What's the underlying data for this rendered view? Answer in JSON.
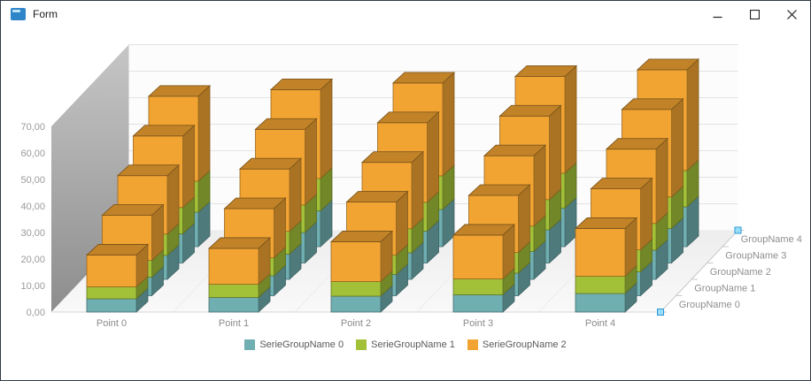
{
  "window": {
    "title": "Form",
    "icon": "form-app-icon",
    "controls": {
      "minimize": "minimize",
      "maximize": "maximize",
      "close": "close"
    }
  },
  "chart_data": {
    "type": "bar",
    "subtype": "3d-stacked-manhattan",
    "title": "",
    "points": [
      "Point 0",
      "Point 1",
      "Point 2",
      "Point 3",
      "Point 4"
    ],
    "groups": [
      "GroupName 0",
      "GroupName 1",
      "GroupName 2",
      "GroupName 3",
      "GroupName 4"
    ],
    "yticks": [
      "0,00",
      "10,00",
      "20,00",
      "30,00",
      "40,00",
      "50,00",
      "60,00",
      "70,00"
    ],
    "ylim": [
      0,
      70
    ],
    "grid": true,
    "legend_position": "bottom",
    "selection_handle_color": "#9ADCF8",
    "series": [
      {
        "name": "SerieGroupName 0",
        "color": "#6FAEB1",
        "values": [
          [
            5,
            5.5,
            6,
            6.5,
            7
          ],
          [
            7,
            7.5,
            8,
            8.5,
            9
          ],
          [
            9,
            9.5,
            10,
            10.5,
            11
          ],
          [
            11,
            11.5,
            12,
            12.5,
            13
          ],
          [
            13,
            13.5,
            14,
            14.5,
            15
          ]
        ]
      },
      {
        "name": "SerieGroupName 1",
        "color": "#A2C139",
        "values": [
          [
            4.5,
            5,
            5.5,
            6,
            6.5
          ],
          [
            6.3,
            6.8,
            7.3,
            7.8,
            8.3
          ],
          [
            8.1,
            8.6,
            9.1,
            9.6,
            10.1
          ],
          [
            9.9,
            10.4,
            10.9,
            11.4,
            11.9
          ],
          [
            11.7,
            12.2,
            12.7,
            13.2,
            13.7
          ]
        ]
      },
      {
        "name": "SerieGroupName 2",
        "color": "#F2A432",
        "values": [
          [
            12,
            13.5,
            15,
            16.5,
            18
          ],
          [
            17,
            18.5,
            20,
            21.5,
            23
          ],
          [
            22,
            23.5,
            25,
            26.5,
            28
          ],
          [
            27,
            28.5,
            30,
            31.5,
            33
          ],
          [
            32,
            33.5,
            35,
            36.5,
            38
          ]
        ]
      }
    ]
  }
}
